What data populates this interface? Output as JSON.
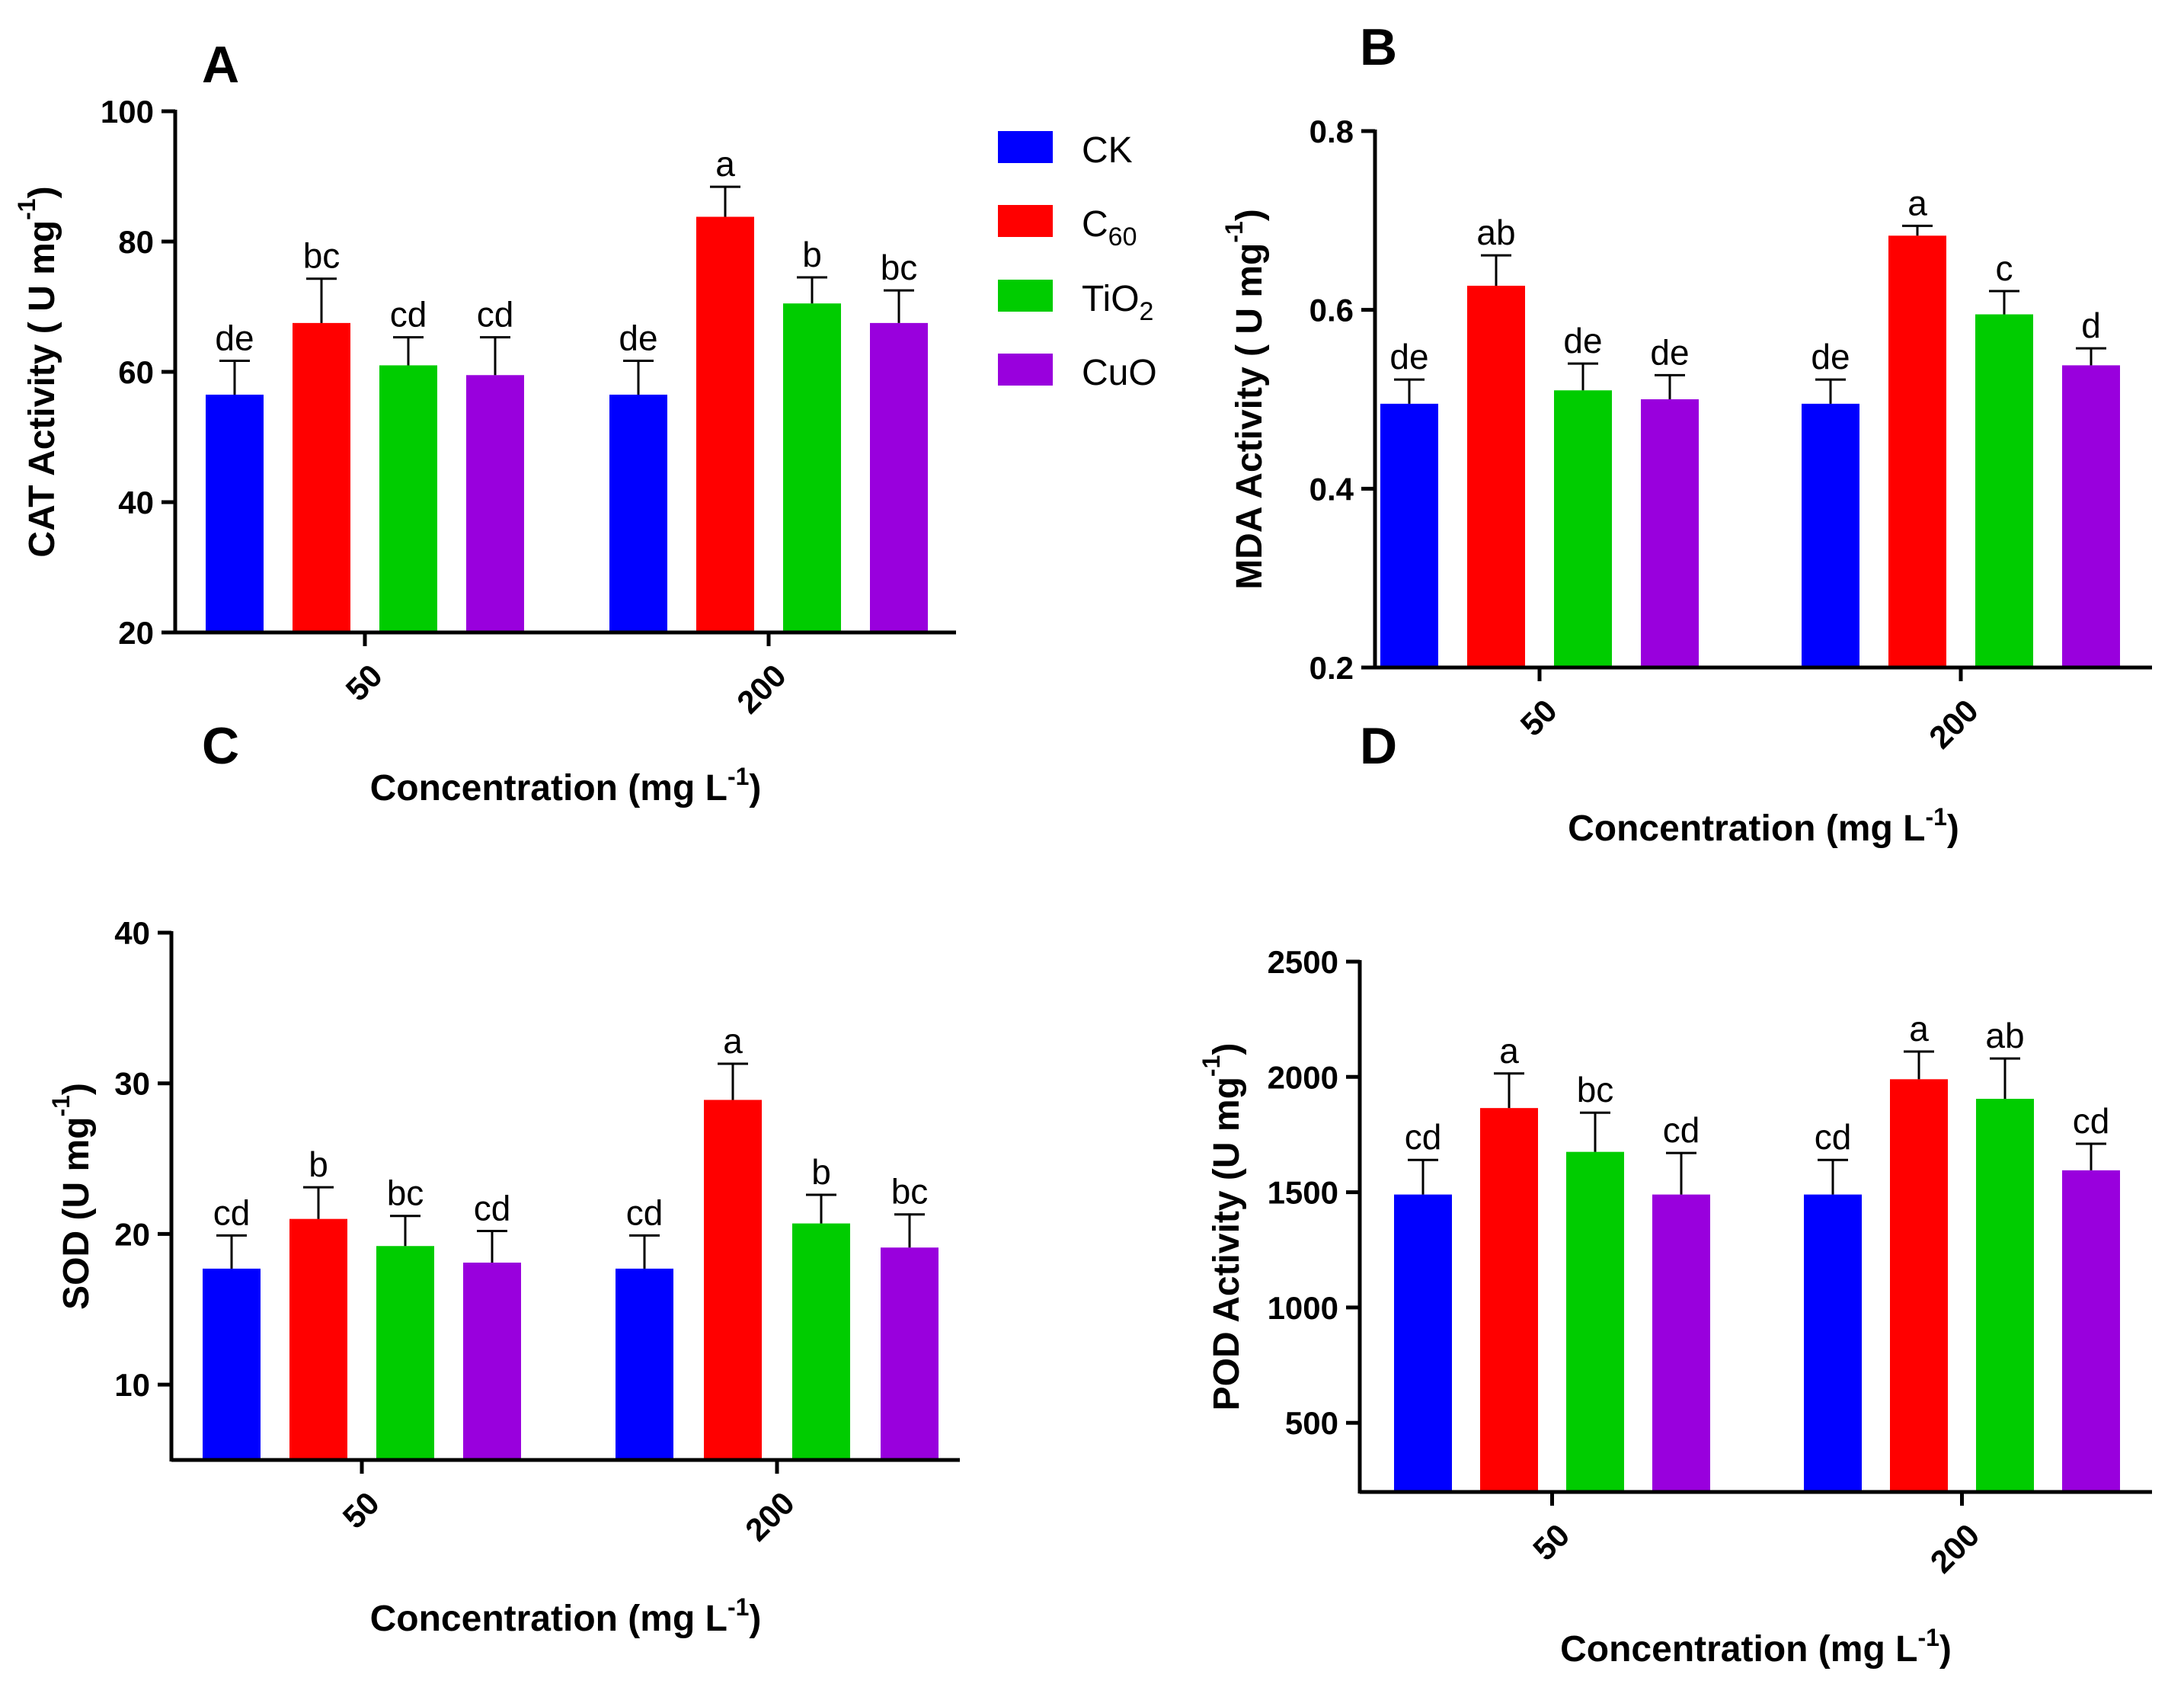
{
  "legend": {
    "items": [
      {
        "label": "CK",
        "color": "#0000ff"
      },
      {
        "label": "C",
        "sub": "60",
        "color": "#ff0000"
      },
      {
        "label": "TiO",
        "sub": "2",
        "color": "#00cc00"
      },
      {
        "label": "CuO",
        "color": "#9900dd"
      }
    ]
  },
  "chart_data": [
    {
      "panel": "A",
      "type": "bar",
      "ylabel": "CAT Activity ( U mg",
      "ylabel_sup": "-1",
      "ylabel_close": ")",
      "xlabel": "Concentration (mg L",
      "xlabel_sup": "-1",
      "xlabel_close": ")",
      "categories": [
        "50",
        "200"
      ],
      "ylim": [
        20,
        100
      ],
      "yticks": [
        20,
        40,
        60,
        80,
        100
      ],
      "series": [
        {
          "name": "CK",
          "values": [
            56.5,
            56.5
          ],
          "errors": [
            5.2,
            5.2
          ],
          "labels": [
            "de",
            "de"
          ]
        },
        {
          "name": "C60",
          "values": [
            67.5,
            83.8
          ],
          "errors": [
            6.8,
            4.6
          ],
          "labels": [
            "bc",
            "a"
          ]
        },
        {
          "name": "TiO2",
          "values": [
            61.0,
            70.5
          ],
          "errors": [
            4.3,
            4.0
          ],
          "labels": [
            "cd",
            "b"
          ]
        },
        {
          "name": "CuO",
          "values": [
            59.5,
            67.5
          ],
          "errors": [
            5.8,
            5.0
          ],
          "labels": [
            "cd",
            "bc"
          ]
        }
      ]
    },
    {
      "panel": "B",
      "type": "bar",
      "ylabel": "MDA Activity ( U mg",
      "ylabel_sup": "-1",
      "ylabel_close": ")",
      "xlabel": "Concentration (mg L",
      "xlabel_sup": "-1",
      "xlabel_close": ")",
      "categories": [
        "50",
        "200"
      ],
      "ylim": [
        0.2,
        0.8
      ],
      "yticks": [
        0.2,
        0.4,
        0.6,
        0.8
      ],
      "tick_decimals": 1,
      "series": [
        {
          "name": "CK",
          "values": [
            0.495,
            0.495
          ],
          "errors": [
            0.027,
            0.027
          ],
          "labels": [
            "de",
            "de"
          ]
        },
        {
          "name": "C60",
          "values": [
            0.627,
            0.683
          ],
          "errors": [
            0.034,
            0.011
          ],
          "labels": [
            "ab",
            "a"
          ]
        },
        {
          "name": "TiO2",
          "values": [
            0.51,
            0.595
          ],
          "errors": [
            0.03,
            0.026
          ],
          "labels": [
            "de",
            "c"
          ]
        },
        {
          "name": "CuO",
          "values": [
            0.5,
            0.538
          ],
          "errors": [
            0.027,
            0.019
          ],
          "labels": [
            "de",
            "d"
          ]
        }
      ]
    },
    {
      "panel": "C",
      "type": "bar",
      "ylabel": "SOD (U mg",
      "ylabel_sup": "-1",
      "ylabel_close": ")",
      "xlabel": "Concentration (mg L",
      "xlabel_sup": "-1",
      "xlabel_close": ")",
      "categories": [
        "50",
        "200"
      ],
      "ylim": [
        5,
        40
      ],
      "yticks": [
        10,
        20,
        30,
        40
      ],
      "series": [
        {
          "name": "CK",
          "values": [
            17.7,
            17.7
          ],
          "errors": [
            2.2,
            2.2
          ],
          "labels": [
            "cd",
            "cd"
          ]
        },
        {
          "name": "C60",
          "values": [
            21.0,
            28.9
          ],
          "errors": [
            2.1,
            2.4
          ],
          "labels": [
            "b",
            "a"
          ]
        },
        {
          "name": "TiO2",
          "values": [
            19.2,
            20.7
          ],
          "errors": [
            2.0,
            1.9
          ],
          "labels": [
            "bc",
            "b"
          ]
        },
        {
          "name": "CuO",
          "values": [
            18.1,
            19.1
          ],
          "errors": [
            2.1,
            2.2
          ],
          "labels": [
            "cd",
            "bc"
          ]
        }
      ]
    },
    {
      "panel": "D",
      "type": "bar",
      "ylabel": "POD Activity (U mg",
      "ylabel_sup": "-1",
      "ylabel_close": ")",
      "xlabel": "Concentration (mg L",
      "xlabel_sup": "-1",
      "xlabel_close": ")",
      "categories": [
        "50",
        "200"
      ],
      "ylim": [
        200,
        2500
      ],
      "yticks": [
        500,
        1000,
        1500,
        2000,
        2500
      ],
      "series": [
        {
          "name": "CK",
          "values": [
            1490,
            1490
          ],
          "errors": [
            150,
            150
          ],
          "labels": [
            "cd",
            "cd"
          ]
        },
        {
          "name": "C60",
          "values": [
            1865,
            1990
          ],
          "errors": [
            150,
            120
          ],
          "labels": [
            "a",
            "a"
          ]
        },
        {
          "name": "TiO2",
          "values": [
            1675,
            1905
          ],
          "errors": [
            170,
            175
          ],
          "labels": [
            "bc",
            "ab"
          ]
        },
        {
          "name": "CuO",
          "values": [
            1490,
            1595
          ],
          "errors": [
            180,
            115
          ],
          "labels": [
            "cd",
            "cd"
          ]
        }
      ]
    }
  ]
}
